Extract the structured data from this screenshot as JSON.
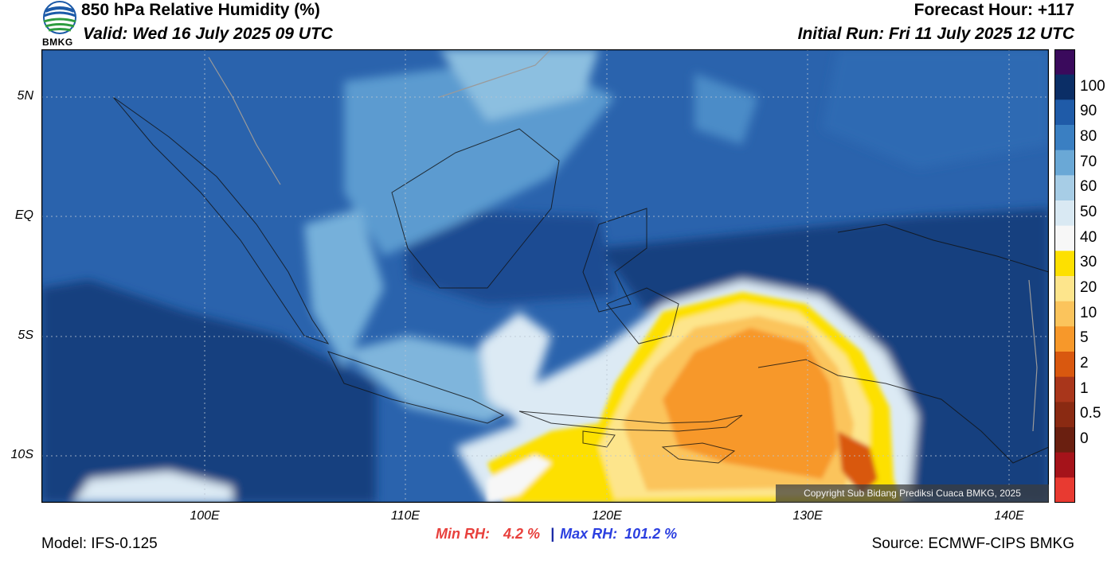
{
  "header": {
    "title": "850 hPa Relative Humidity (%)",
    "valid": "Valid: Wed 16 July 2025 09 UTC",
    "forecast_hour": "Forecast Hour: +117",
    "initial_run": "Initial Run: Fri 11 July 2025 12 UTC",
    "logo_text": "BMKG"
  },
  "axes": {
    "y_ticks": [
      "5N",
      "EQ",
      "5S",
      "10S"
    ],
    "x_ticks": [
      "100E",
      "110E",
      "120E",
      "130E",
      "140E"
    ]
  },
  "colorbar": {
    "labels": [
      "100",
      "90",
      "80",
      "70",
      "60",
      "50",
      "40",
      "30",
      "20",
      "10",
      "5",
      "2",
      "1",
      "0.5",
      "0"
    ],
    "colors": [
      "#3a0a5c",
      "#0b2e66",
      "#1f5ba8",
      "#3a7fc2",
      "#6aa8d6",
      "#a7cde6",
      "#d9e9f3",
      "#f7f7f7",
      "#fde000",
      "#fde58c",
      "#fbc45c",
      "#f7982a",
      "#d9580f",
      "#a9361b",
      "#8a2a12",
      "#6a1f10",
      "#a5131a",
      "#e83a31"
    ]
  },
  "stats": {
    "min_label": "Min RH:",
    "min_value": "4.2 %",
    "separator": "|",
    "max_label": "Max RH:",
    "max_value": "101.2 %"
  },
  "footer": {
    "model": "Model: IFS-0.125",
    "source": "Source: ECMWF-CIPS BMKG",
    "copyright": "Copyright Sub Bidang Prediksi Cuaca BMKG, 2025"
  }
}
